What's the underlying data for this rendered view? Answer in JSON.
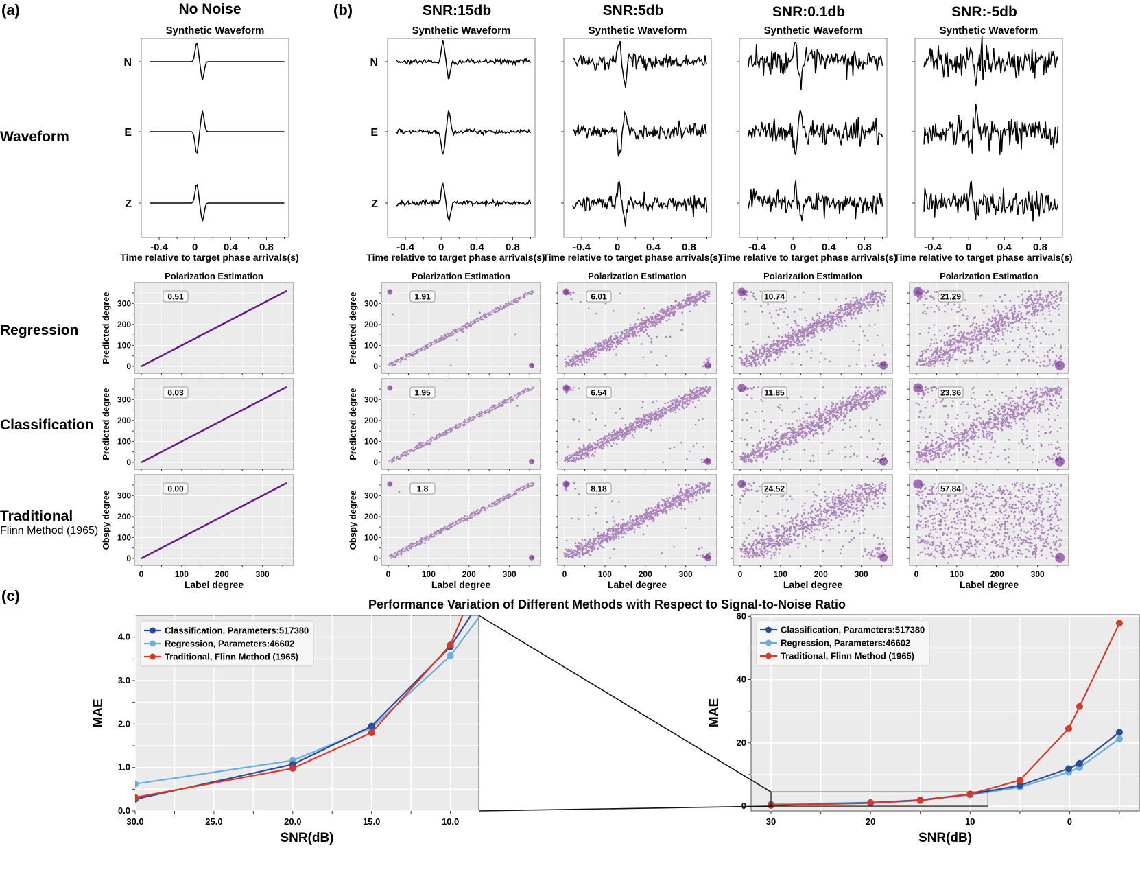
{
  "panel_labels": {
    "a": "(a)",
    "b": "(b)",
    "c": "(c)"
  },
  "columns": [
    {
      "title": "No Noise",
      "key": "nonoise"
    },
    {
      "title": "SNR:15db",
      "key": "snr15"
    },
    {
      "title": "SNR:5db",
      "key": "snr5"
    },
    {
      "title": "SNR:0.1db",
      "key": "snr01"
    },
    {
      "title": "SNR:-5db",
      "key": "snrm5"
    }
  ],
  "row_labels": {
    "waveform": "Waveform",
    "regression": "Regression",
    "classification": "Classification",
    "traditional": "Traditional",
    "traditional_sub": "Flinn Method (1965)"
  },
  "colors": {
    "scatter": "#6a1b8a",
    "classification": "#2b4c9b",
    "regression": "#6aaedc",
    "traditional": "#d23c2b",
    "plot_bg": "#ebebeb"
  },
  "chart_data": [
    {
      "type": "line",
      "name": "synthetic-waveforms",
      "title": "Synthetic Waveform",
      "xlabel": "Time relative to target phase arrivals(s)",
      "x_ticks": [
        "-0.4",
        "0",
        "0.4",
        "0.8"
      ],
      "xlim": [
        -0.6,
        1.05
      ],
      "channels": [
        "N",
        "E",
        "Z"
      ],
      "noise_levels": {
        "nonoise": 0.0,
        "snr15": 0.18,
        "snr5": 0.55,
        "snr01": 0.9,
        "snrm5": 1.4
      }
    },
    {
      "type": "scatter",
      "name": "polarization-estimation",
      "title": "Polarization Estimation",
      "xlabel": "Label degree",
      "ylabels": {
        "regression": "Predicted degree",
        "classification": "Predicted degree",
        "traditional": "Obspy degree"
      },
      "x_ticks": [
        "0",
        "100",
        "200",
        "300"
      ],
      "y_ticks": [
        "0",
        "100",
        "200",
        "300"
      ],
      "xlim": [
        0,
        360
      ],
      "ylim": [
        0,
        360
      ],
      "mae": {
        "regression": {
          "nonoise": "0.51",
          "snr15": "1.91",
          "snr5": "6.01",
          "snr01": "10.74",
          "snrm5": "21.29"
        },
        "classification": {
          "nonoise": "0.03",
          "snr15": "1.95",
          "snr5": "6.54",
          "snr01": "11.85",
          "snrm5": "23.36"
        },
        "traditional": {
          "nonoise": "0.00",
          "snr15": "1.8",
          "snr5": "8.18",
          "snr01": "24.52",
          "snrm5": "57.84"
        }
      }
    },
    {
      "type": "line",
      "name": "mae-vs-snr-zoom",
      "title": "Performance Variation of Different Methods with Respect to Signal-to-Noise Ratio",
      "xlabel": "SNR(dB)",
      "ylabel": "MAE",
      "x_ticks": [
        "30.0",
        "25.0",
        "20.0",
        "15.0",
        "10.0"
      ],
      "y_ticks": [
        "0.0",
        "1.0",
        "2.0",
        "3.0",
        "4.0"
      ],
      "xlim": [
        30,
        8.2
      ],
      "ylim": [
        0,
        4.5
      ],
      "x_inverted": true,
      "legend_position": "top-left",
      "series": [
        {
          "name": "Classification, Parameters:517380",
          "key": "classification",
          "x": [
            30,
            20,
            15,
            10,
            5
          ],
          "y": [
            0.27,
            1.07,
            1.95,
            3.78,
            6.54
          ]
        },
        {
          "name": "Regression, Parameters:46602",
          "key": "regression",
          "x": [
            30,
            20,
            15,
            10,
            5
          ],
          "y": [
            0.62,
            1.16,
            1.91,
            3.57,
            6.01
          ]
        },
        {
          "name": "Traditional, Flinn Method (1965)",
          "key": "traditional",
          "x": [
            30,
            20,
            15,
            10,
            5
          ],
          "y": [
            0.31,
            0.98,
            1.8,
            3.82,
            8.18
          ]
        }
      ]
    },
    {
      "type": "line",
      "name": "mae-vs-snr-full",
      "xlabel": "SNR(dB)",
      "ylabel": "MAE",
      "x_ticks": [
        "30",
        "20",
        "10",
        "0"
      ],
      "y_ticks": [
        "0",
        "20",
        "40",
        "60"
      ],
      "xlim": [
        32,
        -7
      ],
      "ylim": [
        -1.5,
        60.5
      ],
      "x_inverted": true,
      "legend_position": "top-left",
      "series": [
        {
          "name": "Classification, Parameters:517380",
          "key": "classification",
          "x": [
            30,
            20,
            15,
            10,
            5,
            0.1,
            -1,
            -5
          ],
          "y": [
            0.27,
            1.07,
            1.95,
            3.78,
            6.54,
            11.85,
            13.5,
            23.36
          ]
        },
        {
          "name": "Regression, Parameters:46602",
          "key": "regression",
          "x": [
            30,
            20,
            15,
            10,
            5,
            0.1,
            -1,
            -5
          ],
          "y": [
            0.62,
            1.16,
            1.91,
            3.57,
            6.01,
            10.74,
            12.2,
            21.29
          ]
        },
        {
          "name": "Traditional, Flinn Method (1965)",
          "key": "traditional",
          "x": [
            30,
            20,
            15,
            10,
            5,
            0.1,
            -1,
            -5
          ],
          "y": [
            0.31,
            0.98,
            1.8,
            3.82,
            8.18,
            24.52,
            31.5,
            57.84
          ]
        }
      ]
    }
  ]
}
